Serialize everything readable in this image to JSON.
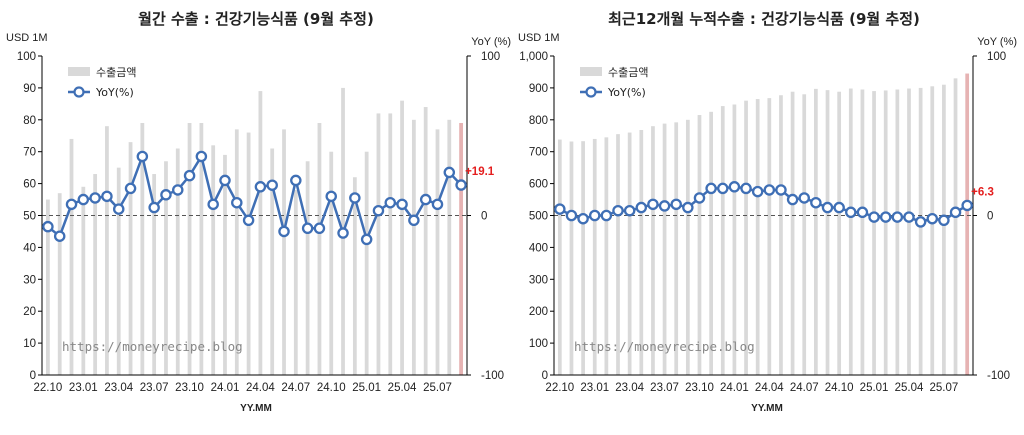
{
  "charts": [
    {
      "type": "bar-line",
      "title": "월간 수출 : 건강기능식품 (9월 추정)",
      "ylabel_left": "USD 1M",
      "ylabel_right": "YoY (%)",
      "xlabel": "YY.MM",
      "legend": {
        "bar": "수출금액",
        "line": "YoY(%)"
      },
      "watermark": "https://moneyrecipe.blog",
      "ylim_left": [
        0,
        100
      ],
      "ylim_right": [
        -100,
        100
      ],
      "left_ticks": [
        "0",
        "10",
        "20",
        "30",
        "40",
        "50",
        "60",
        "70",
        "80",
        "90",
        "100"
      ],
      "right_ticks": [
        "-100",
        "0",
        "100"
      ],
      "x_ticks": [
        "22.10",
        "23.01",
        "23.04",
        "23.07",
        "23.10",
        "24.01",
        "24.04",
        "24.07",
        "24.10",
        "25.01",
        "25.04",
        "25.07"
      ],
      "last_label": "+19.1",
      "colors": {
        "bar": "#d9d9d9",
        "bar_last": "#e6b3b3",
        "line": "#3f6fb5",
        "marker_fill": "#ffffff",
        "label": "#e41e1e"
      },
      "chart_data": {
        "type": "bar",
        "x": [
          "22.10",
          "22.11",
          "22.12",
          "23.01",
          "23.02",
          "23.03",
          "23.04",
          "23.05",
          "23.06",
          "23.07",
          "23.08",
          "23.09",
          "23.10",
          "23.11",
          "23.12",
          "24.01",
          "24.02",
          "24.03",
          "24.04",
          "24.05",
          "24.06",
          "24.07",
          "24.08",
          "24.09",
          "24.10",
          "24.11",
          "24.12",
          "25.01",
          "25.02",
          "25.03",
          "25.04",
          "25.05",
          "25.06",
          "25.07",
          "25.08",
          "25.09"
        ],
        "series": [
          {
            "name": "수출금액",
            "values": [
              55,
              57,
              74,
              59,
              63,
              78,
              65,
              73,
              79,
              63,
              67,
              71,
              79,
              79,
              72,
              69,
              77,
              76,
              89,
              71,
              77,
              58,
              67,
              79,
              70,
              90,
              62,
              70,
              82,
              82,
              86,
              80,
              84,
              77,
              80,
              79
            ]
          },
          {
            "name": "YoY(%)",
            "values": [
              -7,
              -13,
              7,
              10,
              11,
              12,
              4,
              17,
              37,
              5,
              13,
              16,
              25,
              37,
              7,
              22,
              8,
              -3,
              18,
              19,
              -10,
              22,
              -8,
              -8,
              12,
              -11,
              11,
              -15,
              3,
              8,
              7,
              -3,
              10,
              7,
              27,
              19.1
            ]
          }
        ]
      }
    },
    {
      "type": "bar-line",
      "title": "최근12개월 누적수출 : 건강기능식품 (9월 추정)",
      "ylabel_left": "USD 1M",
      "ylabel_right": "YoY (%)",
      "xlabel": "YY.MM",
      "legend": {
        "bar": "수출금액",
        "line": "YoY(%)"
      },
      "watermark": "https://moneyrecipe.blog",
      "ylim_left": [
        0,
        1000
      ],
      "ylim_right": [
        -100,
        100
      ],
      "left_ticks": [
        "0",
        "100",
        "200",
        "300",
        "400",
        "500",
        "600",
        "700",
        "800",
        "900",
        "1,000"
      ],
      "right_ticks": [
        "-100",
        "0",
        "100"
      ],
      "x_ticks": [
        "22.10",
        "23.01",
        "23.04",
        "23.07",
        "23.10",
        "24.01",
        "24.04",
        "24.07",
        "24.10",
        "25.01",
        "25.04",
        "25.07"
      ],
      "last_label": "+6.3",
      "colors": {
        "bar": "#d9d9d9",
        "bar_last": "#e6b3b3",
        "line": "#3f6fb5",
        "marker_fill": "#ffffff",
        "label": "#e41e1e"
      },
      "chart_data": {
        "type": "bar",
        "x": [
          "22.10",
          "22.11",
          "22.12",
          "23.01",
          "23.02",
          "23.03",
          "23.04",
          "23.05",
          "23.06",
          "23.07",
          "23.08",
          "23.09",
          "23.10",
          "23.11",
          "23.12",
          "24.01",
          "24.02",
          "24.03",
          "24.04",
          "24.05",
          "24.06",
          "24.07",
          "24.08",
          "24.09",
          "24.10",
          "24.11",
          "24.12",
          "25.01",
          "25.02",
          "25.03",
          "25.04",
          "25.05",
          "25.06",
          "25.07",
          "25.08",
          "25.09"
        ],
        "series": [
          {
            "name": "수출금액",
            "values": [
              738,
              732,
              733,
              740,
              745,
              755,
              760,
              768,
              780,
              788,
              792,
              800,
              815,
              825,
              843,
              848,
              860,
              865,
              868,
              877,
              888,
              880,
              897,
              893,
              888,
              898,
              895,
              890,
              892,
              895,
              898,
              900,
              905,
              910,
              930,
              945
            ]
          },
          {
            "name": "YoY(%)",
            "values": [
              4,
              0,
              -2,
              0,
              0,
              3,
              3,
              5,
              7,
              6,
              7,
              5,
              11,
              17,
              17,
              18,
              17,
              15,
              16,
              16,
              10,
              11,
              8,
              5,
              5,
              2,
              2,
              -1,
              -1,
              -1,
              -1,
              -4,
              -2,
              -3,
              2,
              6.3
            ]
          }
        ]
      }
    }
  ]
}
